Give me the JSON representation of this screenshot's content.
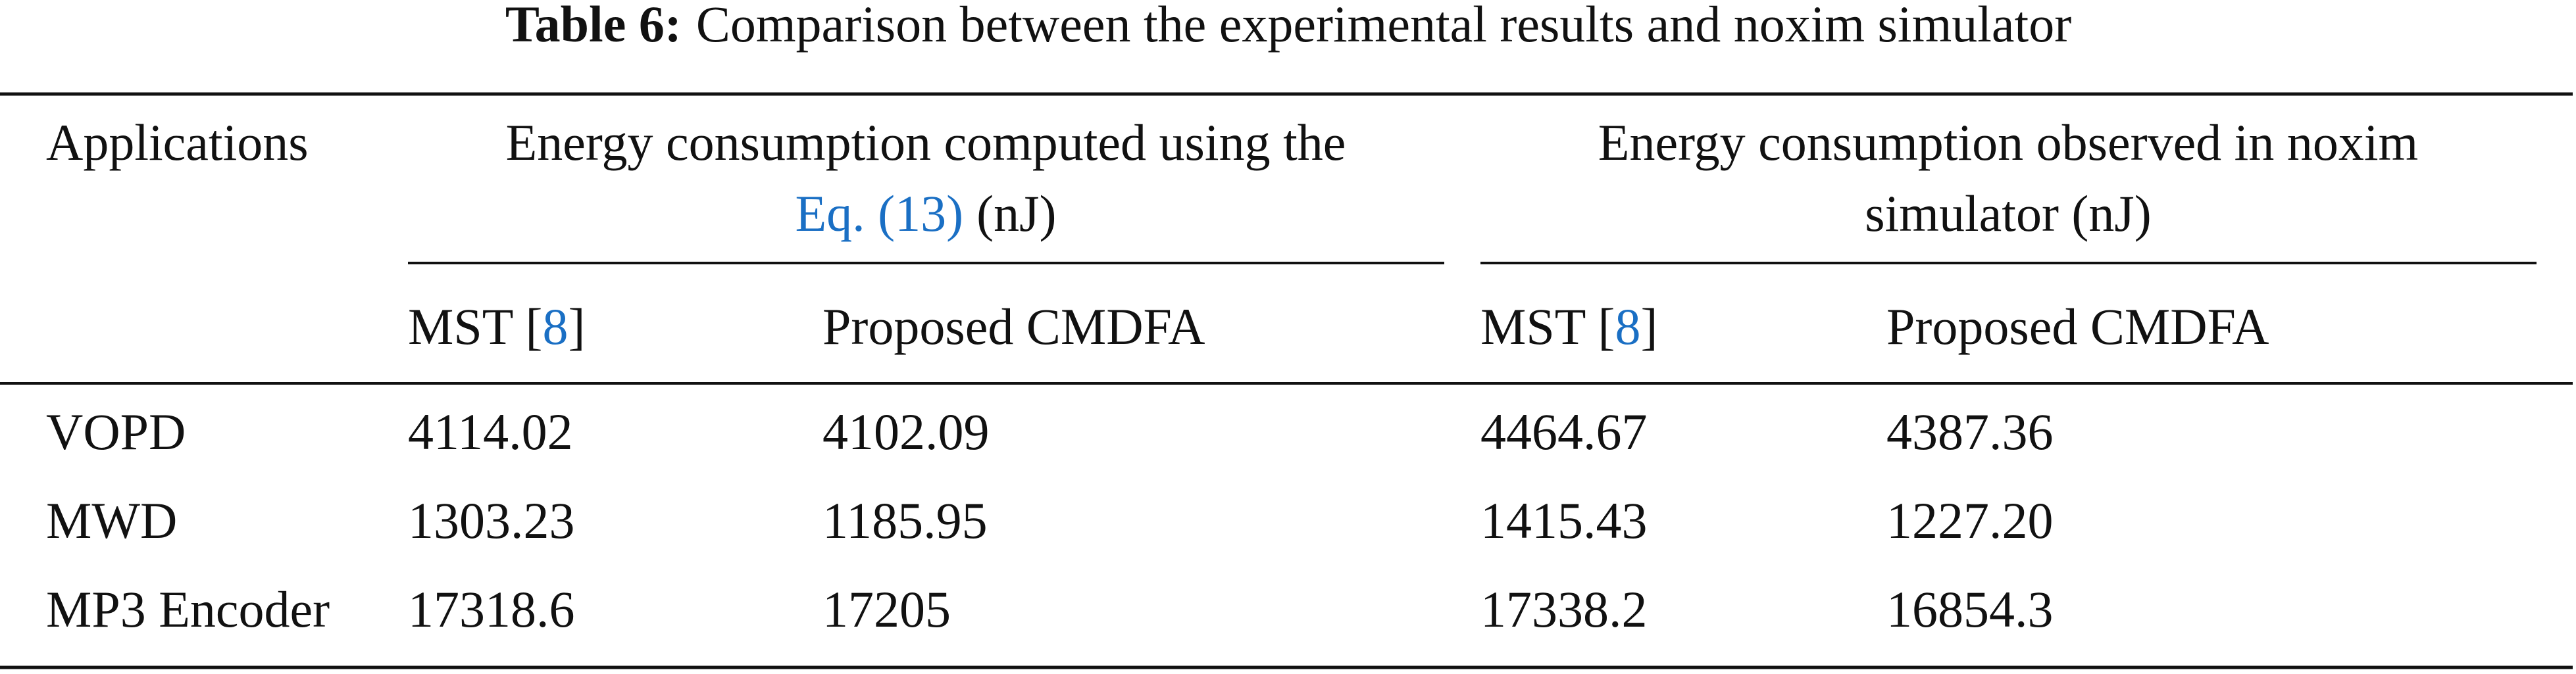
{
  "caption": {
    "label": "Table 6:",
    "text": "Comparison between the experimental results and noxim simulator"
  },
  "table": {
    "header": {
      "applications": "Applications",
      "group1": {
        "line1": "Energy consumption computed using the",
        "ref": "Eq. (13)",
        "unit": "(nJ)"
      },
      "group2": {
        "line1": "Energy consumption observed in noxim",
        "line2": "simulator (nJ)"
      },
      "sub": [
        {
          "name": "MST [",
          "ref": "8",
          "end": "]"
        },
        {
          "name": "Proposed CMDFA"
        },
        {
          "name": "MST [",
          "ref": "8",
          "end": "]"
        },
        {
          "name": "Proposed CMDFA"
        }
      ]
    },
    "rows": [
      [
        "VOPD",
        "4114.02",
        "4102.09",
        "4464.67",
        "4387.36"
      ],
      [
        "MWD",
        "1303.23",
        "1185.95",
        "1415.43",
        "1227.20"
      ],
      [
        "MP3 Encoder",
        "17318.6",
        "17205",
        "17338.2",
        "16854.3"
      ]
    ]
  }
}
